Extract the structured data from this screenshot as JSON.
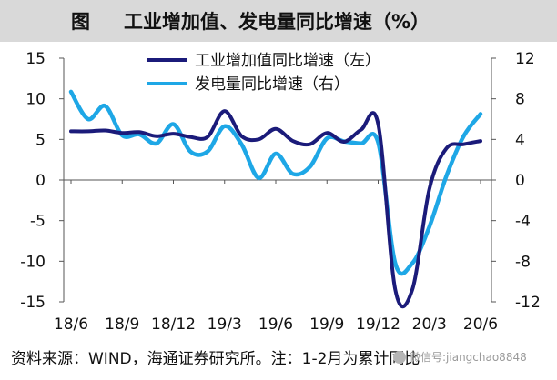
{
  "header": {
    "label": "图",
    "title": "工业增加值、发电量同比增速（%）"
  },
  "footer": {
    "source": "资料来源：WIND，海通证券研究所。注：1-2月为累计同比",
    "watermark": "微信号:jiangchao8848"
  },
  "colors": {
    "series1": "#1b1b7a",
    "series2": "#1ea7e6",
    "header_bg": "#d9d9d9",
    "axis": "#555555"
  },
  "chart_data": {
    "type": "line",
    "x": [
      "18/6",
      "18/7",
      "18/8",
      "18/9",
      "18/10",
      "18/11",
      "18/12",
      "19/1",
      "19/2",
      "19/3",
      "19/4",
      "19/5",
      "19/6",
      "19/7",
      "19/8",
      "19/9",
      "19/10",
      "19/11",
      "19/12",
      "20/1",
      "20/2",
      "20/3",
      "20/4",
      "20/5",
      "20/6"
    ],
    "x_tick_labels": [
      "18/6",
      "18/9",
      "18/12",
      "19/3",
      "19/6",
      "19/9",
      "19/12",
      "20/3",
      "20/6"
    ],
    "x_tick_indices": [
      0,
      3,
      6,
      9,
      12,
      15,
      18,
      21,
      24
    ],
    "y_left": {
      "lim": [
        -15,
        15
      ],
      "ticks": [
        15,
        10,
        5,
        0,
        -5,
        -10,
        -15
      ]
    },
    "y_right": {
      "lim": [
        -12,
        12
      ],
      "ticks": [
        12,
        8,
        4,
        0,
        -4,
        -8,
        -12
      ]
    },
    "series": [
      {
        "name": "工业增加值同比增速（左）",
        "axis": "left",
        "values": [
          6.0,
          6.0,
          6.1,
          5.8,
          5.9,
          5.4,
          5.7,
          5.3,
          5.3,
          8.5,
          5.4,
          5.0,
          6.3,
          4.8,
          4.4,
          5.8,
          4.7,
          6.2,
          6.9,
          -13.5,
          -13.5,
          -1.1,
          3.9,
          4.4,
          4.8
        ]
      },
      {
        "name": "发电量同比增速（右）",
        "axis": "right",
        "values": [
          8.7,
          6.0,
          7.3,
          4.4,
          4.5,
          3.6,
          5.5,
          2.8,
          2.8,
          5.3,
          3.5,
          0.2,
          2.6,
          0.6,
          1.3,
          4.1,
          3.8,
          3.6,
          3.7,
          -8.2,
          -8.2,
          -4.6,
          0.4,
          4.3,
          6.5
        ]
      }
    ],
    "legend": "top-center"
  }
}
